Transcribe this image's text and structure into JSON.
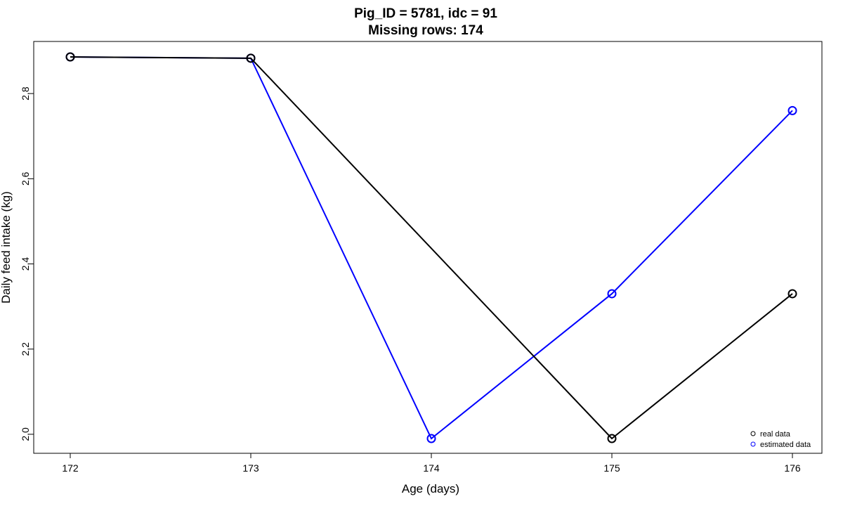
{
  "chart_data": {
    "type": "line",
    "title": "Pig_ID = 5781, idc = 91",
    "subtitle": "Missing rows: 174",
    "xlabel": "Age (days)",
    "ylabel": "Daily feed intake (kg)",
    "x": [
      172,
      173,
      174,
      175,
      176
    ],
    "xlim": [
      172,
      176
    ],
    "ylim": [
      1.99,
      2.886
    ],
    "x_ticks": [
      "172",
      "173",
      "174",
      "175",
      "176"
    ],
    "y_ticks": [
      "2.0",
      "2.2",
      "2.4",
      "2.6",
      "2.8"
    ],
    "y_tick_values": [
      2.0,
      2.2,
      2.4,
      2.6,
      2.8
    ],
    "grid": false,
    "legend_position": "bottom-right",
    "series": [
      {
        "name": "real data",
        "color": "#000000",
        "marker": "open-circle",
        "values": [
          2.886,
          2.883,
          null,
          1.99,
          2.33
        ]
      },
      {
        "name": "estimated data",
        "color": "#0000ff",
        "marker": "open-circle",
        "values": [
          2.886,
          2.883,
          1.99,
          2.33,
          2.76
        ]
      }
    ],
    "draw_order": [
      1,
      0
    ]
  }
}
